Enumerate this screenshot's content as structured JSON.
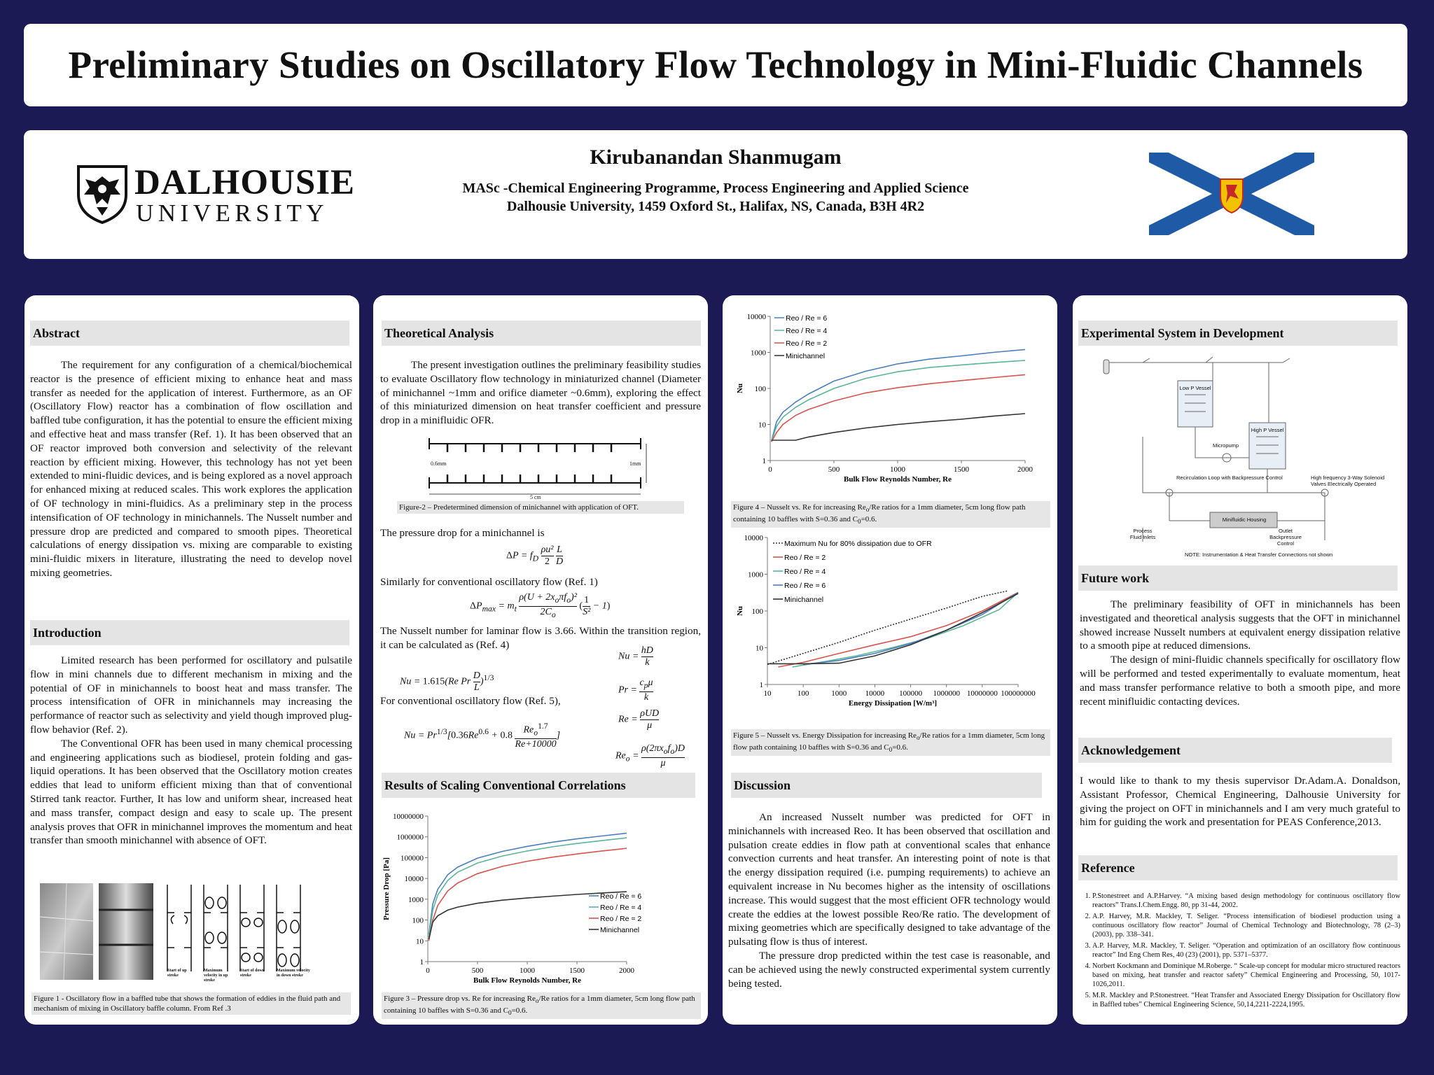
{
  "title": "Preliminary Studies on Oscillatory Flow Technology in Mini-Fluidic Channels",
  "author": {
    "name": "Kirubanandan Shanmugam",
    "affiliation_1": "MASc -Chemical Engineering Programme, Process Engineering and Applied Science",
    "affiliation_2": "Dalhousie University, 1459 Oxford St., Halifax, NS, Canada, B3H 4R2",
    "logo_line1": "DALHOUSIE",
    "logo_line2": "UNIVERSITY"
  },
  "abstract": {
    "heading": "Abstract",
    "text": "The requirement for any configuration of a chemical/biochemical reactor is the presence of efficient mixing to enhance heat and mass transfer as needed for the application of interest. Furthermore, as an OF (Oscillatory Flow) reactor has a combination of flow oscillation and baffled tube configuration, it has the potential to ensure the efficient mixing and effective heat and mass transfer (Ref. 1). It has been observed that an OF reactor improved both conversion and selectivity of the relevant reaction by efficient mixing. However, this technology has not yet been extended to mini-fluidic devices, and is being explored as a novel approach for enhanced mixing at reduced scales. This work explores the application of OF technology in mini-fluidics. As a preliminary step in the process intensification of OF technology in minichannels. The Nusselt number and pressure drop are predicted and compared to smooth pipes.  Theoretical calculations of energy dissipation vs. mixing are comparable to existing mini-fluidic mixers in literature, illustrating the need to develop novel mixing geometries."
  },
  "introduction": {
    "heading": "Introduction",
    "p1": "Limited research has been performed for oscillatory and pulsatile flow in mini channels due to different mechanism in mixing and the potential of OF in minichannels to boost heat and mass transfer. The process intensification of OFR in minichannels may increasing the performance of reactor such as selectivity and yield though improved plug-flow behavior (Ref. 2).",
    "p2": "The Conventional OFR has been used in many chemical processing and engineering applications such as biodiesel, protein folding and gas-liquid operations. It has been observed that the Oscillatory motion creates eddies that lead to uniform efficient mixing than that of conventional Stirred tank reactor. Further, It has low and uniform shear, increased heat and mass transfer, compact design and easy to scale up. The present analysis proves that OFR in minichannel improves the momentum and heat transfer than smooth minichannel with absence of OFT."
  },
  "figure1": {
    "caption": "Figure 1 - Oscillatory flow in a baffled tube that shows the formation of eddies in the fluid path and mechanism of  mixing in Oscillatory baffle column. From  Ref .3",
    "labels": [
      "Start of up stroke",
      "Maximum velocity in up stroke",
      "Start of down stroke",
      "Maximum velocity in down stroke"
    ]
  },
  "theory": {
    "heading": "Theoretical Analysis",
    "p1": "The present investigation outlines the preliminary feasibility studies to evaluate Oscillatory flow technology in miniaturized channel (Diameter of minichannel ~1mm and orifice diameter ~0.6mm), exploring the effect of this miniaturized dimension on heat transfer coefficient and pressure drop in a minifluidic OFR.",
    "fig2_caption": "Figure-2 – Predetermined dimension of minichannel with application of OFT.",
    "fig2_labels": {
      "left": "0.6mm",
      "right": "1mm",
      "bottom": "5 cm"
    },
    "pd_text": "The pressure drop for a minichannel is",
    "osc_text": "Similarly for conventional oscillatory flow (Ref. 1)",
    "nu_text": "The Nusselt number for laminar flow is 3.66. Within the transition region, it can be calculated as (Ref. 4)",
    "nu_osc_text": "For conventional oscillatory flow (Ref. 5),"
  },
  "results": {
    "heading": "Results of Scaling Conventional Correlations",
    "fig3_caption": "Figure 3 – Pressure drop vs. Re for increasing Reo/Re ratios for a 1mm diameter, 5cm long flow path containing 10 baffles with S=0.36 and C0=0.6."
  },
  "fig4_caption": "Figure 4 – Nusselt vs. Re for increasing Reo/Re ratios for a 1mm diameter, 5cm long flow path containing 10 baffles with S=0.36 and C0=0.6.",
  "fig5_caption": "Figure 5 – Nusselt vs. Energy Dissipation for increasing Reo/Re ratios for a 1mm diameter, 5cm long flow path containing 10 baffles with S=0.36 and C0=0.6.",
  "discussion": {
    "heading": "Discussion",
    "p1": "An increased Nusselt number was predicted for OFT in minichannels with increased Reo.  It has been observed that oscillation and pulsation create eddies in flow path at conventional scales that enhance convection currents and heat transfer. An interesting point of note is that the energy dissipation required (i.e. pumping requirements) to achieve an equivalent increase in Nu becomes higher as the intensity of oscillations increase.  This would suggest that the most efficient OFR technology would create the eddies at the lowest possible Reo/Re ratio.  The development of mixing geometries which are specifically designed to take advantage of the pulsating flow is thus of interest.",
    "p2": "The pressure drop predicted within the test case is reasonable, and can be achieved using the newly constructed experimental system currently being tested."
  },
  "experimental": {
    "heading": "Experimental System in Development",
    "labels": [
      "Low P Vessel",
      "High P Vessel",
      "Micropump",
      "Recirculation Loop with Backpressure Control",
      "High frequency 3-Way Solenoid Valves Electrically Operated",
      "Minifluidic Housing",
      "Process Fluid Inlets",
      "Outlet Backpressure Control",
      "NOTE: Instrumentation & Heat Transfer Connections not shown"
    ]
  },
  "future": {
    "heading": "Future work",
    "p1": "The preliminary feasibility of OFT in minichannels has been investigated and theoretical analysis suggests that the OFT in minichannel showed increase Nusselt numbers at equivalent energy dissipation relative to a smooth pipe at reduced dimensions.",
    "p2": "The design of  mini-fluidic channels specifically for oscillatory flow will be performed and tested experimentally to evaluate momentum, heat and mass transfer performance relative to both a smooth pipe, and more recent minifluidic contacting devices."
  },
  "ack": {
    "heading": "Acknowledgement",
    "text": "I would like to thank to my thesis supervisor Dr.Adam.A. Donaldson, Assistant Professor, Chemical Engineering, Dalhousie University for giving the project on OFT in minichannels and I am very much grateful to him for guiding the work and presentation for PEAS Conference,2013."
  },
  "refs": {
    "heading": "Reference",
    "items": [
      "P.Stonestreet and A.P.Harvey. “A mixing based design methodology for continuous oscillatory flow reactors” Trans.I.Chem.Engg. 80, pp 31-44, 2002.",
      "A.P. Harvey, M.R. Mackley, T. Seliger. “Process intensification of biodiesel production using a continuous oscillatory flow reactor” Journal of Chemical Technology and Biotechnology, 78 (2–3) (2003), pp. 338–341.",
      "A.P. Harvey, M.R. Mackley, T. Seliger. “Operation and optimization of an oscillatory flow continuous reactor” Ind Eng Chem Res, 40 (23) (2001), pp. 5371–5377.",
      "Norbert Kockmann and Dominique M.Roberge. “ Scale-up concept for modular micro structured reactors based on mixing, heat transfer and reactor safety” Chemical Engineering and Processing, 50, 1017-1026,2011.",
      "M.R. Mackley and P.Stonestreet. “Heat Transfer and Associated Energy Dissipation for Oscillatory flow in Baffled tubes” Chemical Engineering Science, 50,14,2211-2224,1995."
    ]
  },
  "chart_data": [
    {
      "type": "line",
      "id": "fig3",
      "xlabel": "Bulk Flow Reynolds Number, Re",
      "ylabel": "Pressure Drop [Pa]",
      "xlim": [
        0,
        2000
      ],
      "ylim": [
        1,
        10000000
      ],
      "yscale": "log",
      "x_ticks": [
        "0",
        "500",
        "1000",
        "1500",
        "2000"
      ],
      "y_ticks": [
        "1",
        "10",
        "100",
        "1000",
        "10000",
        "100000",
        "1000000",
        "10000000"
      ],
      "x": [
        10,
        50,
        100,
        200,
        300,
        500,
        750,
        1000,
        1250,
        1500,
        1750,
        2000
      ],
      "series": [
        {
          "name": "Reo / Re = 6",
          "color": "#4a7fbf",
          "values": [
            20,
            600,
            3000,
            15000,
            35000,
            95000,
            200000,
            350000,
            550000,
            800000,
            1100000,
            1500000
          ]
        },
        {
          "name": "Reo / Re = 4",
          "color": "#5ab59a",
          "values": [
            15,
            300,
            1600,
            8000,
            20000,
            55000,
            120000,
            210000,
            330000,
            480000,
            660000,
            900000
          ]
        },
        {
          "name": "Reo / Re = 2",
          "color": "#d9534f",
          "values": [
            10,
            100,
            500,
            2500,
            6000,
            17000,
            38000,
            67000,
            105000,
            150000,
            210000,
            280000
          ]
        },
        {
          "name": "Minichannel",
          "color": "#333333",
          "values": [
            12,
            80,
            160,
            300,
            420,
            640,
            900,
            1150,
            1400,
            1700,
            2000,
            2300
          ]
        }
      ]
    },
    {
      "type": "line",
      "id": "fig4",
      "xlabel": "Bulk Flow Reynolds Number, Re",
      "ylabel": "Nu",
      "xlim": [
        0,
        2000
      ],
      "ylim": [
        1,
        10000
      ],
      "yscale": "log",
      "x_ticks": [
        "0",
        "500",
        "1000",
        "1500",
        "2000"
      ],
      "y_ticks": [
        "1",
        "10",
        "100",
        "1000",
        "10000"
      ],
      "x": [
        10,
        50,
        100,
        200,
        300,
        500,
        750,
        1000,
        1250,
        1500,
        1750,
        2000
      ],
      "series": [
        {
          "name": "Reo / Re = 6",
          "color": "#4a7fbf",
          "values": [
            3.5,
            12,
            22,
            42,
            70,
            160,
            300,
            480,
            650,
            800,
            1000,
            1200
          ]
        },
        {
          "name": "Reo / Re = 4",
          "color": "#5ab59a",
          "values": [
            3.4,
            9,
            16,
            30,
            48,
            100,
            190,
            290,
            380,
            450,
            520,
            600
          ]
        },
        {
          "name": "Reo / Re = 2",
          "color": "#d9534f",
          "values": [
            3.3,
            6,
            10,
            18,
            26,
            45,
            75,
            105,
            135,
            165,
            200,
            240
          ]
        },
        {
          "name": "Minichannel",
          "color": "#333333",
          "values": [
            3.66,
            3.66,
            3.66,
            3.66,
            4.5,
            6,
            8,
            10,
            12,
            14,
            17,
            20
          ]
        }
      ]
    },
    {
      "type": "line",
      "id": "fig5",
      "xlabel": "Energy Dissipation [W/m³]",
      "ylabel": "Nu",
      "xlim": [
        10,
        100000000
      ],
      "ylim": [
        1,
        10000
      ],
      "xscale": "log",
      "yscale": "log",
      "x_ticks": [
        "10",
        "100",
        "1000",
        "10000",
        "100000",
        "1000000",
        "10000000",
        "100000000"
      ],
      "y_ticks": [
        "1",
        "10",
        "100",
        "1000",
        "10000"
      ],
      "series": [
        {
          "name": "Maximum Nu for 80% dissipation due to OFR",
          "color": "#333333",
          "dashed": true,
          "x": [
            10,
            100,
            1000,
            10000,
            100000,
            1000000,
            10000000,
            50000000
          ],
          "values": [
            3.5,
            7,
            14,
            30,
            60,
            120,
            250,
            350
          ]
        },
        {
          "name": "Reo / Re = 2",
          "color": "#d9534f",
          "x": [
            20,
            100,
            1000,
            10000,
            100000,
            1000000,
            10000000,
            100000000
          ],
          "values": [
            3,
            4,
            7,
            12,
            20,
            40,
            100,
            320
          ]
        },
        {
          "name": "Reo / Re = 4",
          "color": "#5ab59a",
          "x": [
            50,
            300,
            3000,
            30000,
            300000,
            3000000,
            30000000,
            100000000
          ],
          "values": [
            3,
            4,
            6,
            10,
            18,
            40,
            110,
            320
          ]
        },
        {
          "name": "Reo / Re = 6",
          "color": "#4a7fbf",
          "x": [
            100,
            1000,
            10000,
            100000,
            1000000,
            10000000,
            100000000
          ],
          "values": [
            3.5,
            4.5,
            7,
            13,
            30,
            80,
            320
          ]
        },
        {
          "name": "Minichannel",
          "color": "#333333",
          "x": [
            10,
            100,
            1000,
            10000,
            100000,
            1000000,
            10000000,
            100000000
          ],
          "values": [
            3.66,
            3.66,
            3.8,
            6,
            12,
            30,
            90,
            300
          ]
        }
      ]
    }
  ]
}
